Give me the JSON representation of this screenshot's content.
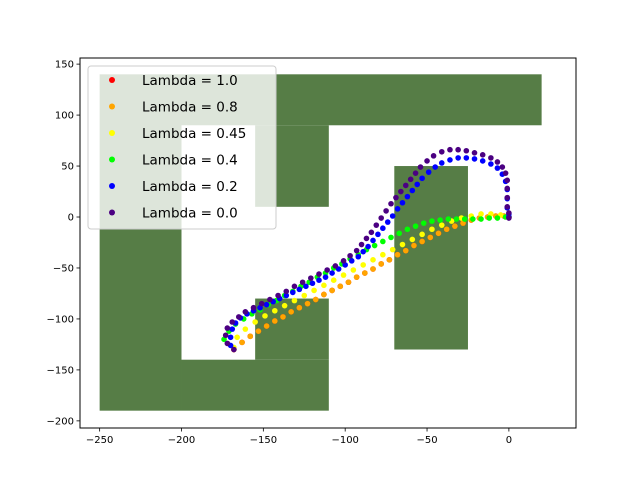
{
  "chart_data": {
    "type": "scatter",
    "title": "",
    "xlabel": "",
    "ylabel": "",
    "xlim": [
      -262,
      41
    ],
    "ylim": [
      -207,
      156
    ],
    "xticks": [
      -250,
      -200,
      -150,
      -100,
      -50,
      0
    ],
    "yticks": [
      -200,
      -150,
      -100,
      -50,
      0,
      50,
      100,
      150
    ],
    "grid": false,
    "legend_position": "upper-left",
    "obstacle_color": "#567d46",
    "obstacles": [
      {
        "x1": -250,
        "x2": -200,
        "y1": -190,
        "y2": 140
      },
      {
        "x1": -200,
        "x2": -110,
        "y1": -190,
        "y2": -140
      },
      {
        "x1": -155,
        "x2": -110,
        "y1": -140,
        "y2": -80
      },
      {
        "x1": -200,
        "x2": 20,
        "y1": 90,
        "y2": 140
      },
      {
        "x1": -155,
        "x2": -110,
        "y1": 10,
        "y2": 90
      },
      {
        "x1": -70,
        "x2": -25,
        "y1": -130,
        "y2": 50
      }
    ],
    "series": [
      {
        "name": "Lambda = 1.0",
        "color": "#ff0000",
        "points": [
          [
            -168,
            -130
          ],
          [
            -163,
            -123
          ],
          [
            -158,
            -117
          ],
          [
            -153,
            -112
          ],
          [
            -148,
            -107
          ],
          [
            -143,
            -102
          ],
          [
            -138,
            -98
          ],
          [
            -133,
            -93
          ],
          [
            -128,
            -89
          ],
          [
            -123,
            -85
          ],
          [
            -118,
            -81
          ],
          [
            -113,
            -76
          ],
          [
            -108,
            -72
          ],
          [
            -103,
            -68
          ],
          [
            -98,
            -64
          ],
          [
            -93,
            -59
          ],
          [
            -88,
            -55
          ],
          [
            -83,
            -51
          ],
          [
            -78,
            -46
          ],
          [
            -73,
            -42
          ],
          [
            -68,
            -37
          ],
          [
            -63,
            -33
          ],
          [
            -58,
            -28
          ],
          [
            -53,
            -24
          ],
          [
            -48,
            -20
          ],
          [
            -43,
            -16
          ],
          [
            -38,
            -12
          ],
          [
            -33,
            -9
          ],
          [
            -28,
            -6
          ],
          [
            -23,
            -3
          ],
          [
            -18,
            -1
          ],
          [
            -13,
            0
          ],
          [
            -8,
            1
          ],
          [
            -3,
            1
          ],
          [
            0,
            0
          ]
        ]
      },
      {
        "name": "Lambda = 0.8",
        "color": "#ffa500",
        "points": [
          [
            -168,
            -130
          ],
          [
            -163,
            -123
          ],
          [
            -158,
            -117
          ],
          [
            -153,
            -112
          ],
          [
            -148,
            -107
          ],
          [
            -143,
            -102
          ],
          [
            -138,
            -98
          ],
          [
            -133,
            -93
          ],
          [
            -128,
            -89
          ],
          [
            -123,
            -85
          ],
          [
            -118,
            -81
          ],
          [
            -113,
            -76
          ],
          [
            -108,
            -72
          ],
          [
            -103,
            -68
          ],
          [
            -98,
            -64
          ],
          [
            -93,
            -59
          ],
          [
            -88,
            -55
          ],
          [
            -83,
            -51
          ],
          [
            -78,
            -46
          ],
          [
            -73,
            -42
          ],
          [
            -68,
            -37
          ],
          [
            -63,
            -33
          ],
          [
            -58,
            -28
          ],
          [
            -53,
            -24
          ],
          [
            -48,
            -20
          ],
          [
            -43,
            -16
          ],
          [
            -38,
            -12
          ],
          [
            -33,
            -9
          ],
          [
            -28,
            -6
          ],
          [
            -23,
            -3
          ],
          [
            -18,
            -1
          ],
          [
            -13,
            0
          ],
          [
            -8,
            1
          ],
          [
            -3,
            1
          ],
          [
            0,
            0
          ]
        ]
      },
      {
        "name": "Lambda = 0.45",
        "color": "#ffff00",
        "points": [
          [
            -168,
            -128
          ],
          [
            -166,
            -118
          ],
          [
            -161,
            -110
          ],
          [
            -155,
            -103
          ],
          [
            -149,
            -97
          ],
          [
            -143,
            -92
          ],
          [
            -137,
            -87
          ],
          [
            -131,
            -82
          ],
          [
            -125,
            -77
          ],
          [
            -119,
            -72
          ],
          [
            -113,
            -67
          ],
          [
            -107,
            -62
          ],
          [
            -101,
            -57
          ],
          [
            -95,
            -52
          ],
          [
            -89,
            -47
          ],
          [
            -83,
            -42
          ],
          [
            -77,
            -37
          ],
          [
            -71,
            -32
          ],
          [
            -65,
            -27
          ],
          [
            -59,
            -22
          ],
          [
            -53,
            -17
          ],
          [
            -47,
            -12
          ],
          [
            -41,
            -8
          ],
          [
            -35,
            -4
          ],
          [
            -29,
            -1
          ],
          [
            -23,
            1
          ],
          [
            -17,
            3
          ],
          [
            -11,
            3
          ],
          [
            -5,
            2
          ],
          [
            0,
            0
          ]
        ]
      },
      {
        "name": "Lambda = 0.4",
        "color": "#00ff00",
        "points": [
          [
            -174,
            -120
          ],
          [
            -171,
            -112
          ],
          [
            -167,
            -105
          ],
          [
            -162,
            -100
          ],
          [
            -157,
            -95
          ],
          [
            -152,
            -91
          ],
          [
            -147,
            -86
          ],
          [
            -142,
            -82
          ],
          [
            -137,
            -77
          ],
          [
            -132,
            -73
          ],
          [
            -127,
            -68
          ],
          [
            -122,
            -64
          ],
          [
            -117,
            -59
          ],
          [
            -112,
            -55
          ],
          [
            -107,
            -50
          ],
          [
            -102,
            -46
          ],
          [
            -97,
            -41
          ],
          [
            -92,
            -37
          ],
          [
            -87,
            -32
          ],
          [
            -82,
            -28
          ],
          [
            -77,
            -24
          ],
          [
            -72,
            -20
          ],
          [
            -67,
            -16
          ],
          [
            -62,
            -12
          ],
          [
            -57,
            -9
          ],
          [
            -52,
            -6
          ],
          [
            -47,
            -4
          ],
          [
            -42,
            -3
          ],
          [
            -37,
            -2
          ],
          [
            -32,
            -2
          ],
          [
            -27,
            -2
          ],
          [
            -22,
            -2
          ],
          [
            -17,
            -2
          ],
          [
            -12,
            -1
          ],
          [
            -7,
            -1
          ],
          [
            -2,
            0
          ],
          [
            0,
            0
          ]
        ]
      },
      {
        "name": "Lambda = 0.2",
        "color": "#0000ff",
        "points": [
          [
            -170,
            -126
          ],
          [
            -170,
            -118
          ],
          [
            -169,
            -110
          ],
          [
            -167,
            -104
          ],
          [
            -164,
            -99
          ],
          [
            -160,
            -95
          ],
          [
            -156,
            -92
          ],
          [
            -152,
            -89
          ],
          [
            -148,
            -86
          ],
          [
            -144,
            -83
          ],
          [
            -140,
            -80
          ],
          [
            -136,
            -77
          ],
          [
            -132,
            -74
          ],
          [
            -128,
            -71
          ],
          [
            -124,
            -68
          ],
          [
            -120,
            -65
          ],
          [
            -116,
            -62
          ],
          [
            -112,
            -59
          ],
          [
            -108,
            -55
          ],
          [
            -104,
            -51
          ],
          [
            -100,
            -47
          ],
          [
            -96,
            -43
          ],
          [
            -92,
            -39
          ],
          [
            -89,
            -34
          ],
          [
            -86,
            -29
          ],
          [
            -83,
            -23
          ],
          [
            -80,
            -17
          ],
          [
            -77,
            -11
          ],
          [
            -74,
            -5
          ],
          [
            -71,
            1
          ],
          [
            -68,
            8
          ],
          [
            -65,
            14
          ],
          [
            -62,
            20
          ],
          [
            -59,
            26
          ],
          [
            -56,
            32
          ],
          [
            -53,
            38
          ],
          [
            -49,
            44
          ],
          [
            -45,
            49
          ],
          [
            -41,
            53
          ],
          [
            -36,
            56
          ],
          [
            -31,
            58
          ],
          [
            -26,
            58
          ],
          [
            -21,
            57
          ],
          [
            -16,
            55
          ],
          [
            -11,
            52
          ],
          [
            -7,
            48
          ],
          [
            -4,
            42
          ],
          [
            -2,
            35
          ],
          [
            -1,
            27
          ],
          [
            -1,
            18
          ],
          [
            -1,
            9
          ],
          [
            0,
            3
          ],
          [
            0,
            0
          ]
        ]
      },
      {
        "name": "Lambda = 0.0",
        "color": "#4b0082",
        "points": [
          [
            -168,
            -130
          ],
          [
            -172,
            -124
          ],
          [
            -173,
            -116
          ],
          [
            -172,
            -109
          ],
          [
            -169,
            -103
          ],
          [
            -165,
            -98
          ],
          [
            -161,
            -93
          ],
          [
            -156,
            -89
          ],
          [
            -151,
            -85
          ],
          [
            -146,
            -81
          ],
          [
            -141,
            -77
          ],
          [
            -136,
            -73
          ],
          [
            -131,
            -68
          ],
          [
            -126,
            -64
          ],
          [
            -121,
            -60
          ],
          [
            -116,
            -56
          ],
          [
            -111,
            -52
          ],
          [
            -106,
            -48
          ],
          [
            -101,
            -43
          ],
          [
            -97,
            -38
          ],
          [
            -93,
            -33
          ],
          [
            -90,
            -27
          ],
          [
            -87,
            -21
          ],
          [
            -84,
            -15
          ],
          [
            -81,
            -8
          ],
          [
            -78,
            -1
          ],
          [
            -75,
            6
          ],
          [
            -72,
            13
          ],
          [
            -69,
            19
          ],
          [
            -66,
            25
          ],
          [
            -63,
            31
          ],
          [
            -60,
            37
          ],
          [
            -57,
            43
          ],
          [
            -54,
            49
          ],
          [
            -50,
            55
          ],
          [
            -46,
            60
          ],
          [
            -41,
            64
          ],
          [
            -36,
            66
          ],
          [
            -31,
            66
          ],
          [
            -26,
            65
          ],
          [
            -21,
            63
          ],
          [
            -16,
            61
          ],
          [
            -11,
            58
          ],
          [
            -7,
            54
          ],
          [
            -4,
            49
          ],
          [
            -2,
            43
          ],
          [
            -1,
            36
          ],
          [
            -1,
            28
          ],
          [
            -1,
            19
          ],
          [
            -1,
            10
          ],
          [
            0,
            4
          ],
          [
            0,
            -1
          ]
        ]
      }
    ]
  }
}
